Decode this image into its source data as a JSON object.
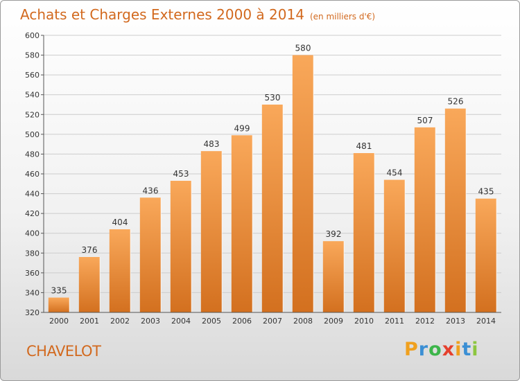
{
  "title": "Achats et Charges Externes 2000 à 2014",
  "subtitle": "(en milliers d'€)",
  "commune": "CHAVELOT",
  "brand": {
    "letters": [
      "P",
      "r",
      "o",
      "x",
      "i",
      "t",
      "i"
    ],
    "colors": [
      "#f0a01e",
      "#3b8fd4",
      "#3cb54a",
      "#e5402d",
      "#f0a01e",
      "#3b8fd4",
      "#8cc63f"
    ]
  },
  "colors": {
    "bar_top": "#f9a85a",
    "bar_bottom": "#d3701f",
    "title": "#d2691e"
  },
  "chart_data": {
    "type": "bar",
    "title": "Achats et Charges Externes 2000 à 2014",
    "subtitle": "(en milliers d'€)",
    "categories": [
      "2000",
      "2001",
      "2002",
      "2003",
      "2004",
      "2005",
      "2006",
      "2007",
      "2008",
      "2009",
      "2010",
      "2011",
      "2012",
      "2013",
      "2014"
    ],
    "values": [
      335,
      376,
      404,
      436,
      453,
      483,
      499,
      530,
      580,
      392,
      481,
      454,
      507,
      526,
      435
    ],
    "ylim": [
      320,
      600
    ],
    "yticks": [
      320,
      340,
      360,
      380,
      400,
      420,
      440,
      460,
      480,
      500,
      520,
      540,
      560,
      580,
      600
    ],
    "grid": true,
    "xlabel": "",
    "ylabel": ""
  }
}
